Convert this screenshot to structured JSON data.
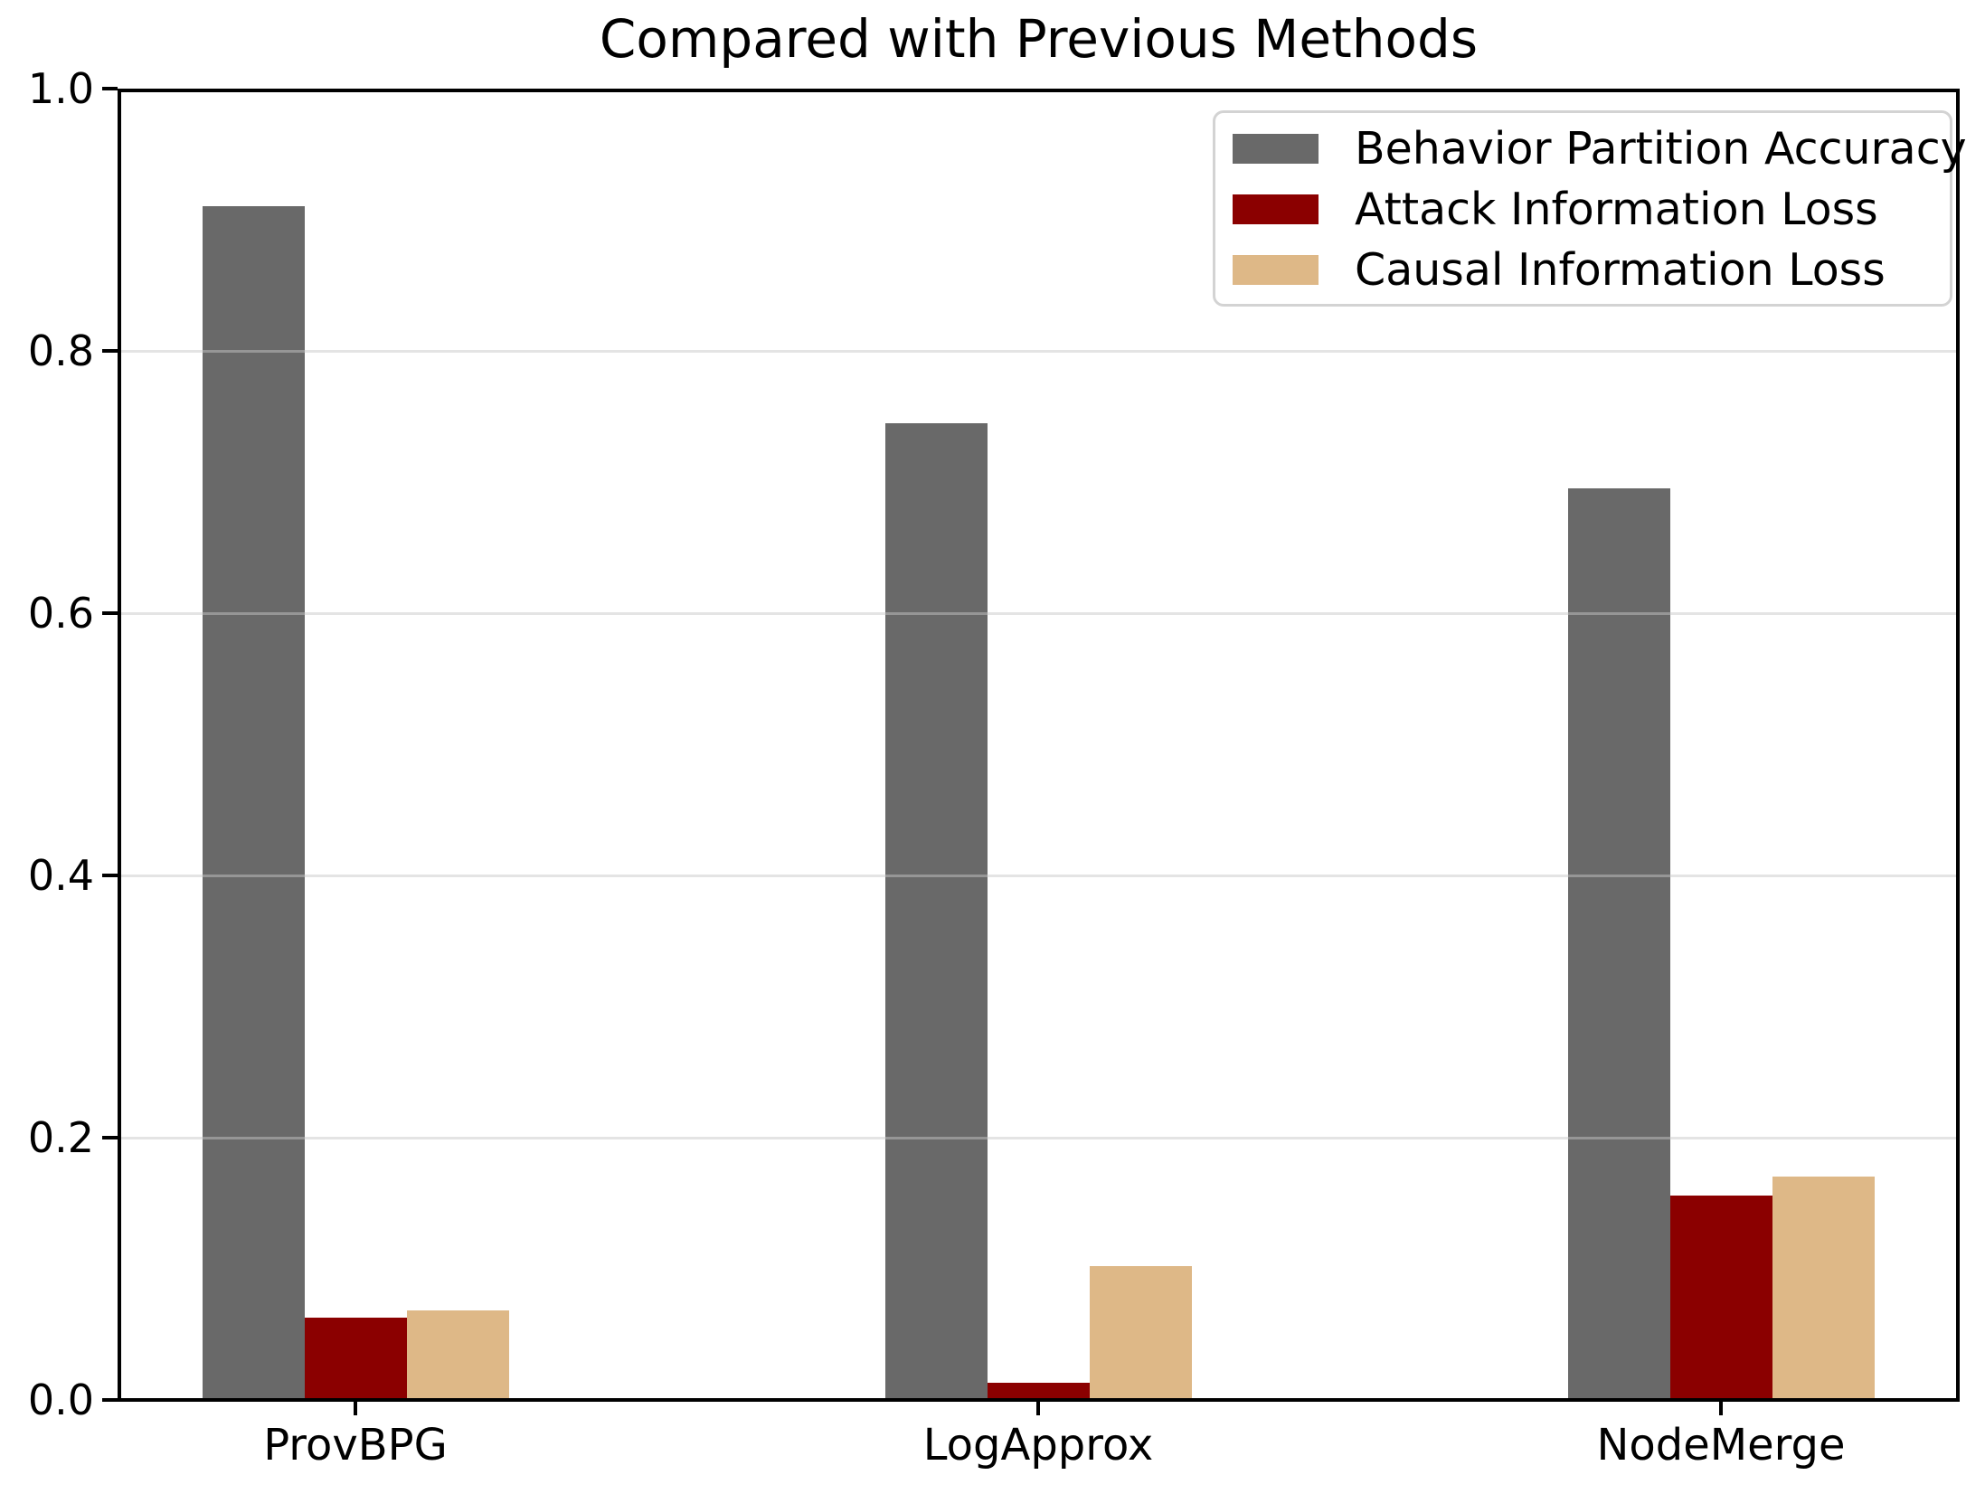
{
  "chart_data": {
    "type": "bar",
    "title": "Compared with Previous Methods",
    "categories": [
      "ProvBPG",
      "LogApprox",
      "NodeMerge"
    ],
    "series": [
      {
        "name": "Behavior Partition Accuracy",
        "color": "#696969",
        "values": [
          0.91,
          0.745,
          0.695
        ]
      },
      {
        "name": "Attack Information Loss",
        "color": "#8B0000",
        "values": [
          0.063,
          0.013,
          0.156
        ]
      },
      {
        "name": "Causal Information Loss",
        "color": "#DEB887",
        "values": [
          0.068,
          0.102,
          0.17
        ]
      }
    ],
    "xlabel": "",
    "ylabel": "",
    "ylim": [
      0.0,
      1.0
    ],
    "yticks": [
      "0.0",
      "0.2",
      "0.4",
      "0.6",
      "0.8",
      "1.0"
    ],
    "grid": true,
    "gridline_values": [
      0.2,
      0.4,
      0.6,
      0.8
    ],
    "legend_position": "upper right",
    "colors": {
      "axis": "#000000",
      "gridline": "#d8d8d8",
      "background": "#ffffff",
      "legend_border": "#d3d3d3"
    }
  }
}
